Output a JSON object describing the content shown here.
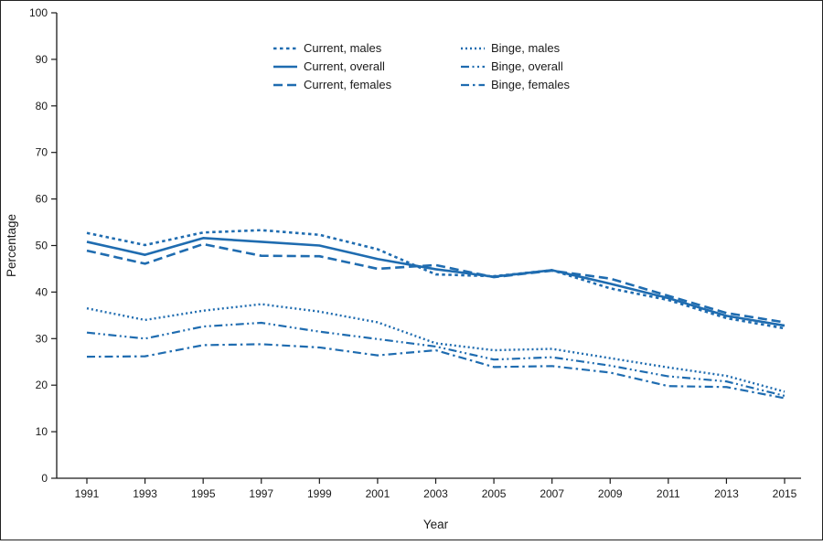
{
  "figure": {
    "border_color": "#222222",
    "background": "#ffffff"
  },
  "chart_data": {
    "type": "line",
    "title": "",
    "xlabel": "Year",
    "ylabel": "Percentage",
    "ylim": [
      0,
      100
    ],
    "ytick_step": 10,
    "x": [
      1991,
      1993,
      1995,
      1997,
      1999,
      2001,
      2003,
      2005,
      2007,
      2009,
      2011,
      2013,
      2015
    ],
    "line_color": "#1f6cb0",
    "legend_position": "top-center",
    "grid": false,
    "series": [
      {
        "name": "Current, males",
        "dash": "3.5 3.5",
        "width": 2.6,
        "values": [
          52.7,
          50.1,
          52.8,
          53.3,
          52.3,
          49.2,
          43.8,
          43.4,
          44.7,
          40.8,
          38.3,
          34.4,
          32.2
        ]
      },
      {
        "name": "Current, overall",
        "dash": "",
        "width": 2.6,
        "values": [
          50.8,
          48.0,
          51.6,
          50.8,
          50.0,
          47.1,
          44.9,
          43.3,
          44.7,
          41.8,
          38.7,
          34.9,
          32.8
        ]
      },
      {
        "name": "Current, females",
        "dash": "10 5",
        "width": 2.6,
        "values": [
          48.9,
          46.1,
          50.3,
          47.8,
          47.7,
          45.0,
          45.8,
          43.2,
          44.6,
          42.9,
          39.2,
          35.5,
          33.5
        ]
      },
      {
        "name": "Binge, males",
        "dash": "2 3",
        "width": 2.4,
        "values": [
          36.5,
          34.0,
          36.0,
          37.4,
          35.8,
          33.5,
          29.0,
          27.5,
          27.8,
          25.8,
          23.8,
          22.0,
          18.6
        ]
      },
      {
        "name": "Binge, overall",
        "dash": "9 3.5 2 3.5 2 3.5",
        "width": 2.2,
        "values": [
          31.3,
          30.0,
          32.6,
          33.4,
          31.5,
          29.9,
          28.3,
          25.5,
          26.0,
          24.2,
          21.9,
          20.8,
          17.7
        ]
      },
      {
        "name": "Binge, females",
        "dash": "9 4 2.5 4",
        "width": 2.2,
        "values": [
          26.1,
          26.2,
          28.6,
          28.8,
          28.1,
          26.4,
          27.5,
          23.9,
          24.1,
          22.7,
          19.8,
          19.6,
          17.2
        ]
      }
    ]
  }
}
